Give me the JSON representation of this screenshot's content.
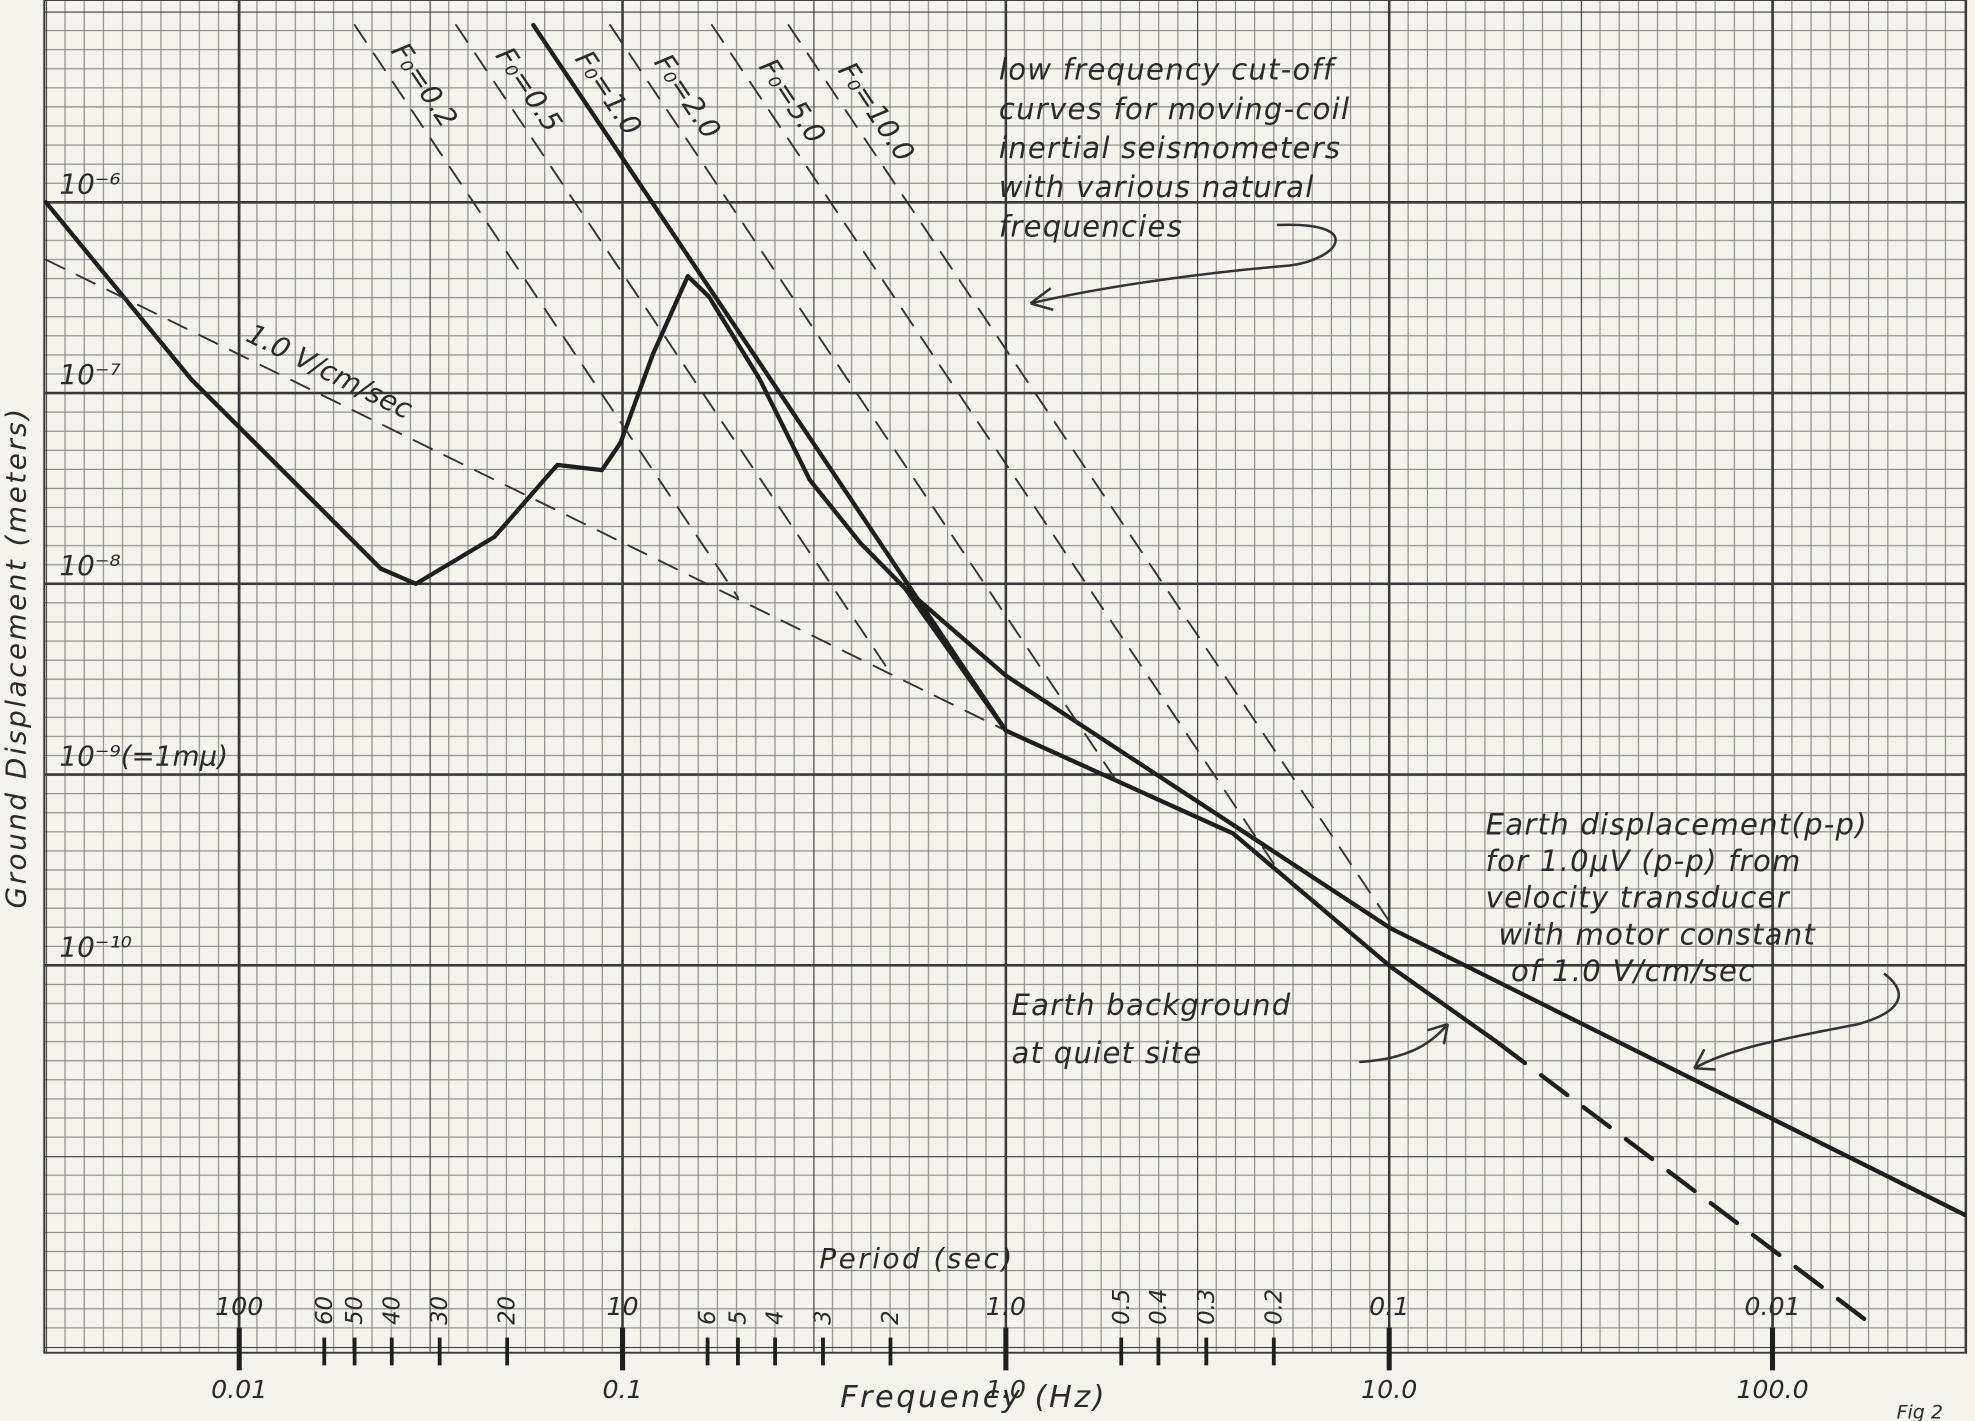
{
  "chart_data": {
    "type": "line",
    "xlabel": "Frequency (Hz)",
    "ylabel": "Ground Displacement (meters)",
    "log_x": true,
    "log_y": true,
    "xlim": [
      0.0031,
      320
    ],
    "ylim": [
      9.3e-13,
      1.15e-05
    ],
    "xticks": [
      {
        "value": 0.01,
        "label": "0.01"
      },
      {
        "value": 0.1,
        "label": "0.1"
      },
      {
        "value": 1,
        "label": "1.0"
      },
      {
        "value": 10,
        "label": "10.0"
      },
      {
        "value": 100,
        "label": "100.0"
      }
    ],
    "yticks": [
      {
        "value": 1e-06,
        "label": "10⁻⁶"
      },
      {
        "value": 1e-07,
        "label": "10⁻⁷"
      },
      {
        "value": 1e-08,
        "label": "10⁻⁸"
      },
      {
        "value": 1e-09,
        "label": "10⁻⁹(=1mμ)"
      },
      {
        "value": 1e-10,
        "label": "10⁻¹⁰"
      }
    ],
    "period_label": "Period (sec)",
    "period_ticks": [
      100,
      60,
      50,
      40,
      30,
      20,
      10,
      6,
      5,
      4,
      3,
      2,
      {
        "value": 1,
        "label": "1.0"
      },
      0.5,
      0.4,
      0.3,
      0.2,
      0.1,
      0.01
    ],
    "series": [
      {
        "color": "#1e1e1e",
        "line_style": "solid",
        "weight": "heavy",
        "x": [
          0.00313,
          0.0075,
          0.016,
          0.0234,
          0.0289,
          0.0463,
          0.0676,
          0.0883,
          0.0988,
          0.12,
          0.148,
          0.168,
          0.228,
          0.308,
          0.418,
          0.545,
          1.0,
          3.92,
          10.1,
          19.3
        ],
        "values": [
          1e-06,
          1.18e-07,
          2.58e-08,
          1.2e-08,
          1e-08,
          1.76e-08,
          4.2e-08,
          3.94e-08,
          5.5e-08,
          1.6e-07,
          4.1e-07,
          3.2e-07,
          1.18e-07,
          3.5e-08,
          1.63e-08,
          9.5e-09,
          1.7e-09,
          4.9e-10,
          9.8e-11,
          3.9e-11
        ]
      },
      {
        "color": "#1e1e1e",
        "line_style": "dashed",
        "weight": "heavy",
        "x": [
          19.3,
          188
        ],
        "values": [
          3.9e-11,
          1.24e-12
        ]
      },
      {
        "color": "#1e1e1e",
        "line_style": "solid",
        "weight": "heavy",
        "x": [
          0.545,
          1.0,
          10.1,
          318
        ],
        "values": [
          9.5e-09,
          3.3e-09,
          1.56e-10,
          4.9e-12
        ]
      },
      {
        "name": "1.0 V/cm/sec",
        "color": "#333333",
        "line_style": "dashed",
        "weight": "light",
        "x": [
          0.00313,
          1.0
        ],
        "values": [
          5e-07,
          1.7e-09
        ]
      },
      {
        "name": "F₀=0.2",
        "color": "#333333",
        "line_style": "dashed",
        "weight": "light",
        "x": [
          0.02,
          0.2
        ],
        "values": [
          8.5e-06,
          8.5e-09
        ]
      },
      {
        "name": "F₀=0.5",
        "color": "#333333",
        "line_style": "dashed",
        "weight": "light",
        "x": [
          0.0368,
          0.5
        ],
        "values": [
          8.5e-06,
          3.4e-09
        ]
      },
      {
        "name": "F₀=1.0",
        "color": "#1e1e1e",
        "line_style": "solid",
        "weight": "heavy",
        "x": [
          0.0585,
          1.0
        ],
        "values": [
          8.5e-06,
          1.7e-09
        ]
      },
      {
        "name": "F₀=2.0",
        "color": "#333333",
        "line_style": "dashed",
        "weight": "light",
        "x": [
          0.0928,
          2.0
        ],
        "values": [
          8.5e-06,
          8.5e-10
        ]
      },
      {
        "name": "F₀=5.0",
        "color": "#333333",
        "line_style": "dashed",
        "weight": "light",
        "x": [
          0.171,
          5.0
        ],
        "values": [
          8.5e-06,
          3.4e-10
        ]
      },
      {
        "name": "F₀=10.0",
        "color": "#333333",
        "line_style": "dashed",
        "weight": "light",
        "x": [
          0.271,
          10.0
        ],
        "values": [
          8.5e-06,
          1.7e-10
        ]
      }
    ],
    "annotations": [
      {
        "lines": [
          "low frequency cut-off",
          "curves for moving-coil",
          "inertial seismometers",
          "with various natural",
          "frequencies"
        ]
      },
      {
        "lines": [
          "Earth displacement(p-p)",
          "for 1.0μV (p-p) from",
          "velocity transducer",
          "with motor constant",
          "of 1.0 V/cm/sec"
        ]
      },
      {
        "lines": [
          "Earth background",
          "at quiet site"
        ]
      }
    ],
    "figure_label": "Fig 2"
  }
}
